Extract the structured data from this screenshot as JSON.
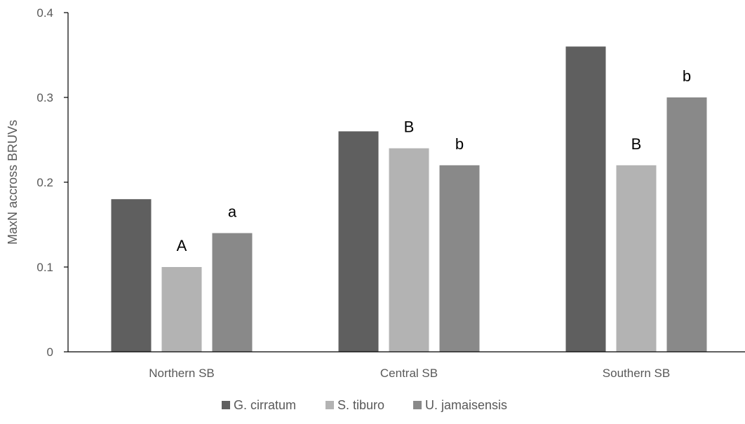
{
  "chart_data": {
    "type": "bar",
    "categories": [
      "Northern SB",
      "Central SB",
      "Southern SB"
    ],
    "series": [
      {
        "name": "G. cirratum",
        "color": "#5f5f5f",
        "values": [
          0.18,
          0.26,
          0.36
        ],
        "annotations": [
          "",
          "",
          ""
        ]
      },
      {
        "name": "S. tiburo",
        "color": "#b3b3b3",
        "values": [
          0.1,
          0.24,
          0.22
        ],
        "annotations": [
          "A",
          "B",
          "B"
        ]
      },
      {
        "name": "U. jamaisensis",
        "color": "#898989",
        "values": [
          0.14,
          0.22,
          0.3
        ],
        "annotations": [
          "a",
          "b",
          "b"
        ]
      }
    ],
    "ylabel": "MaxN accross BRUVs",
    "xlabel": "",
    "title": "",
    "ylim": [
      0,
      0.4
    ],
    "yticks": [
      0,
      0.1,
      0.2,
      0.3,
      0.4
    ],
    "ytick_labels": [
      "0",
      "0.1",
      "0.2",
      "0.3",
      "0.4"
    ],
    "grid": false,
    "legend_position": "bottom"
  }
}
